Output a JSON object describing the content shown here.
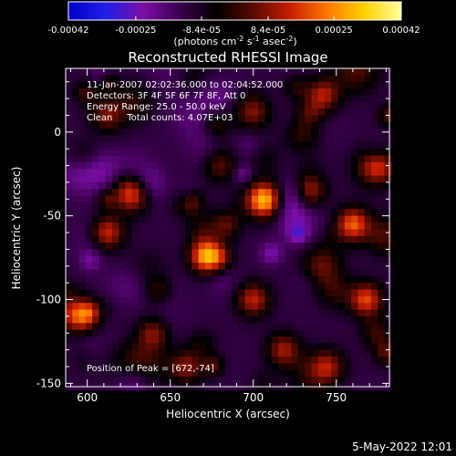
{
  "chart_data": {
    "type": "heatmap",
    "title": "Reconstructed RHESSI Image",
    "xlabel": "Heliocentric X (arcsec)",
    "ylabel": "Heliocentric Y (arcsec)",
    "xlim": [
      587,
      782
    ],
    "ylim": [
      -152,
      38
    ],
    "x_ticks": [
      600,
      650,
      700,
      750
    ],
    "y_ticks": [
      0,
      -50,
      -100,
      -150
    ],
    "colorbar": {
      "min": -0.00042,
      "max": 0.00042,
      "ticks": [
        {
          "value": -0.00042,
          "label": "-0.00042"
        },
        {
          "value": -0.00025,
          "label": "-0.00025"
        },
        {
          "value": -8.4e-05,
          "label": "-8.4e-05"
        },
        {
          "value": 8.4e-05,
          "label": "8.4e-05"
        },
        {
          "value": 0.00025,
          "label": "0.00025"
        },
        {
          "value": 0.00042,
          "label": "0.00042"
        }
      ],
      "unit_label": "(photons cm-2 s-1 asec-2)",
      "colors": [
        "#0000c8",
        "#1e1ee6",
        "#7c0fa8",
        "#3c0050",
        "#000000",
        "#5a0a00",
        "#c81e00",
        "#ff7800",
        "#ffd200",
        "#ffffa0"
      ]
    },
    "annotations": [
      "11-Jan-2007 02:02:36.000 to 02:04:52.000",
      "Detectors: 3F 4F 5F 6F 7F 8F, Att 0",
      "Energy Range: 25.0 - 50.0 keV",
      "Clean     Total counts: 4.07E+03"
    ],
    "peak_label": "Position of Peak = [672,-74]",
    "peak": [
      672,
      -74
    ],
    "bright_sources": [
      {
        "x": 672,
        "y": -74,
        "v": 0.00042
      },
      {
        "x": 707,
        "y": -40,
        "v": 0.00034
      },
      {
        "x": 760,
        "y": -55,
        "v": 0.00032
      },
      {
        "x": 768,
        "y": -100,
        "v": 0.0003
      },
      {
        "x": 612,
        "y": -60,
        "v": 0.00028
      },
      {
        "x": 597,
        "y": -110,
        "v": 0.00027
      },
      {
        "x": 733,
        "y": -35,
        "v": 0.00026
      },
      {
        "x": 700,
        "y": -100,
        "v": 0.00025
      },
      {
        "x": 718,
        "y": -130,
        "v": 0.00022
      },
      {
        "x": 640,
        "y": -120,
        "v": 0.00022
      },
      {
        "x": 660,
        "y": -140,
        "v": 0.0002
      },
      {
        "x": 742,
        "y": 22,
        "v": 0.00024
      },
      {
        "x": 700,
        "y": 12,
        "v": 0.00018
      },
      {
        "x": 612,
        "y": 10,
        "v": 0.00018
      },
      {
        "x": 745,
        "y": -140,
        "v": 0.0002
      },
      {
        "x": 680,
        "y": -20,
        "v": 0.00016
      },
      {
        "x": 626,
        "y": -35,
        "v": 0.00018
      },
      {
        "x": 775,
        "y": -20,
        "v": 0.0002
      }
    ]
  },
  "footer": {
    "timestamp": "5-May-2022 12:01"
  }
}
